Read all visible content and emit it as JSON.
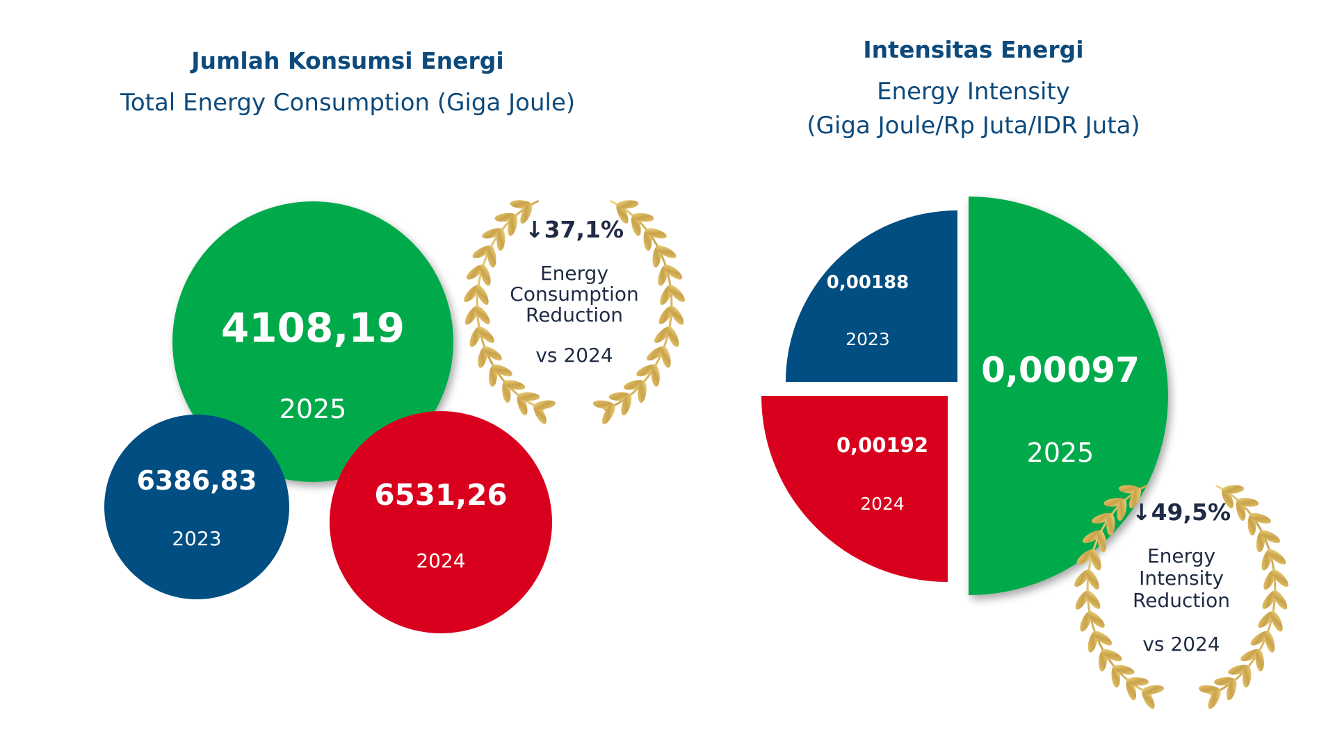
{
  "colors": {
    "green": "#04aa4c",
    "blue": "#014e82",
    "red": "#d9001e",
    "navy_text": "#0d4a7c",
    "dark_text": "#1f2a44",
    "gold": "#d9b45a"
  },
  "left_panel": {
    "title": "Jumlah Konsumsi Energi",
    "subtitle": "Total Energy Consumption (Giga Joule)",
    "badge": {
      "percent": "↓37,1%",
      "lines": [
        "Energy",
        "Consumption",
        "Reduction"
      ],
      "comparison": "vs 2024",
      "icon": "laurel-wreath-icon"
    }
  },
  "right_panel": {
    "title": "Intensitas Energi",
    "subtitle_line1": "Energy Intensity",
    "subtitle_line2": "(Giga Joule/Rp Juta/IDR Juta)",
    "badge": {
      "percent": "↓49,5%",
      "lines": [
        "Energy",
        "Intensity",
        "Reduction"
      ],
      "comparison": "vs 2024",
      "icon": "laurel-wreath-icon"
    }
  },
  "chart_data": [
    {
      "type": "bubble",
      "title": "Jumlah Konsumsi Energi",
      "subtitle": "Total Energy Consumption (Giga Joule)",
      "categories": [
        "2023",
        "2024",
        "2025"
      ],
      "values": [
        6386.83,
        6531.26,
        4108.19
      ],
      "value_labels": [
        "6386,83",
        "6531,26",
        "4108,19"
      ],
      "colors": [
        "#014e82",
        "#d9001e",
        "#04aa4c"
      ],
      "annotation": "↓37,1% Energy Consumption Reduction vs 2024"
    },
    {
      "type": "pie",
      "title": "Intensitas Energi",
      "subtitle": "Energy Intensity (Giga Joule/Rp Juta/IDR Juta)",
      "categories": [
        "2023",
        "2024",
        "2025"
      ],
      "values": [
        0.00188,
        0.00192,
        0.00097
      ],
      "value_labels": [
        "0,00188",
        "0,00192",
        "0,00097"
      ],
      "colors": [
        "#014e82",
        "#d9001e",
        "#04aa4c"
      ],
      "annotation": "↓49,5% Energy Intensity Reduction vs 2024"
    }
  ]
}
